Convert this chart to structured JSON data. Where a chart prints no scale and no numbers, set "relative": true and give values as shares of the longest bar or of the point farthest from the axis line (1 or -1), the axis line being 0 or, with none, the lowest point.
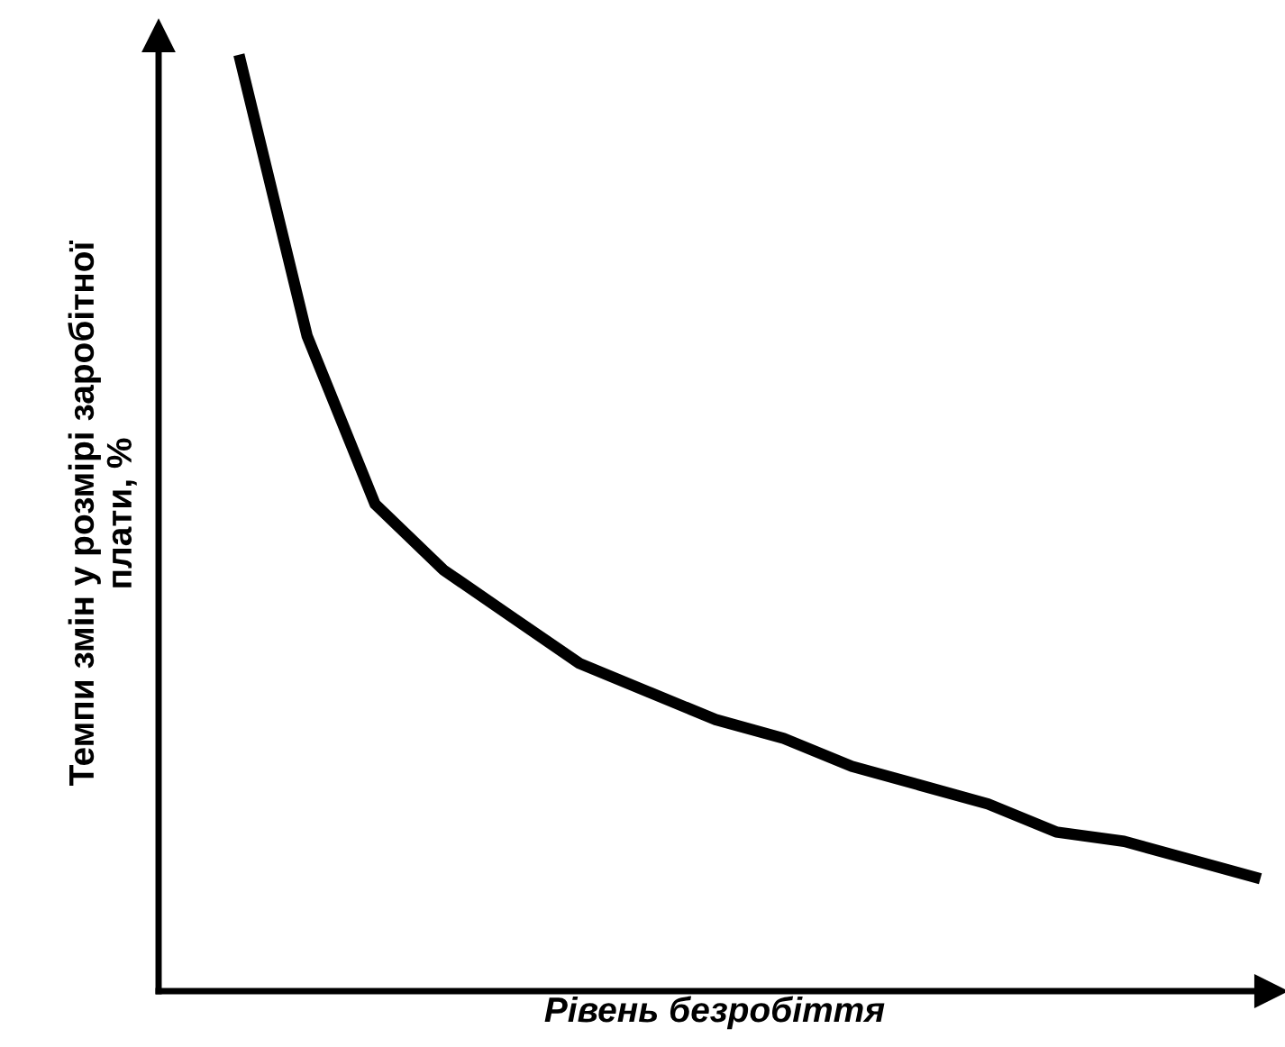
{
  "chart_data": {
    "type": "line",
    "relative": true,
    "xlabel": "Рівень безробіття",
    "ylabel": "Темпи змін у розмірі заробітної\nплати, %",
    "categories": [
      null,
      null,
      null,
      null,
      null,
      null,
      null,
      null,
      null,
      null,
      null,
      null,
      null,
      null,
      null,
      null
    ],
    "series": [
      {
        "color": "#000000",
        "values": [
          1.0,
          0.7,
          0.52,
          0.45,
          0.4,
          0.35,
          0.32,
          0.29,
          0.27,
          0.24,
          0.22,
          0.2,
          0.17,
          0.16,
          0.14,
          0.12
        ]
      }
    ],
    "marker": "none",
    "line_style": "solid"
  }
}
